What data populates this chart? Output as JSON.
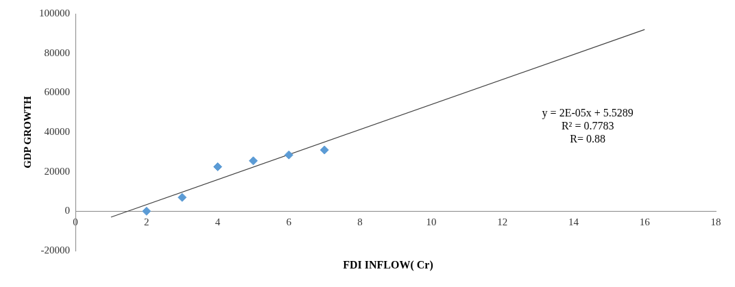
{
  "chart_data": {
    "type": "scatter",
    "xlabel": "FDI INFLOW( Cr)",
    "ylabel": "GDP GROWTH",
    "xlim": [
      0,
      18
    ],
    "xticks": [
      0,
      2,
      4,
      6,
      8,
      10,
      12,
      14,
      16,
      18
    ],
    "ylim": [
      -20000,
      100000
    ],
    "yticks": [
      -20000,
      0,
      20000,
      40000,
      60000,
      80000,
      100000
    ],
    "grid": false,
    "legend": false,
    "marker": "diamond",
    "series": [
      {
        "type": "scatter",
        "color": "#5b9bd5",
        "x": [
          2,
          3,
          4,
          5,
          6,
          7
        ],
        "values": [
          0,
          7000,
          22500,
          25500,
          28500,
          31000
        ]
      },
      {
        "type": "line",
        "color": "#404040",
        "marker": "none",
        "x": [
          1,
          16
        ],
        "values": [
          -3000,
          92000
        ]
      }
    ],
    "annotations": [
      "y = 2E-05x + 5.5289",
      "R² = 0.7783",
      "R= 0.88"
    ]
  }
}
